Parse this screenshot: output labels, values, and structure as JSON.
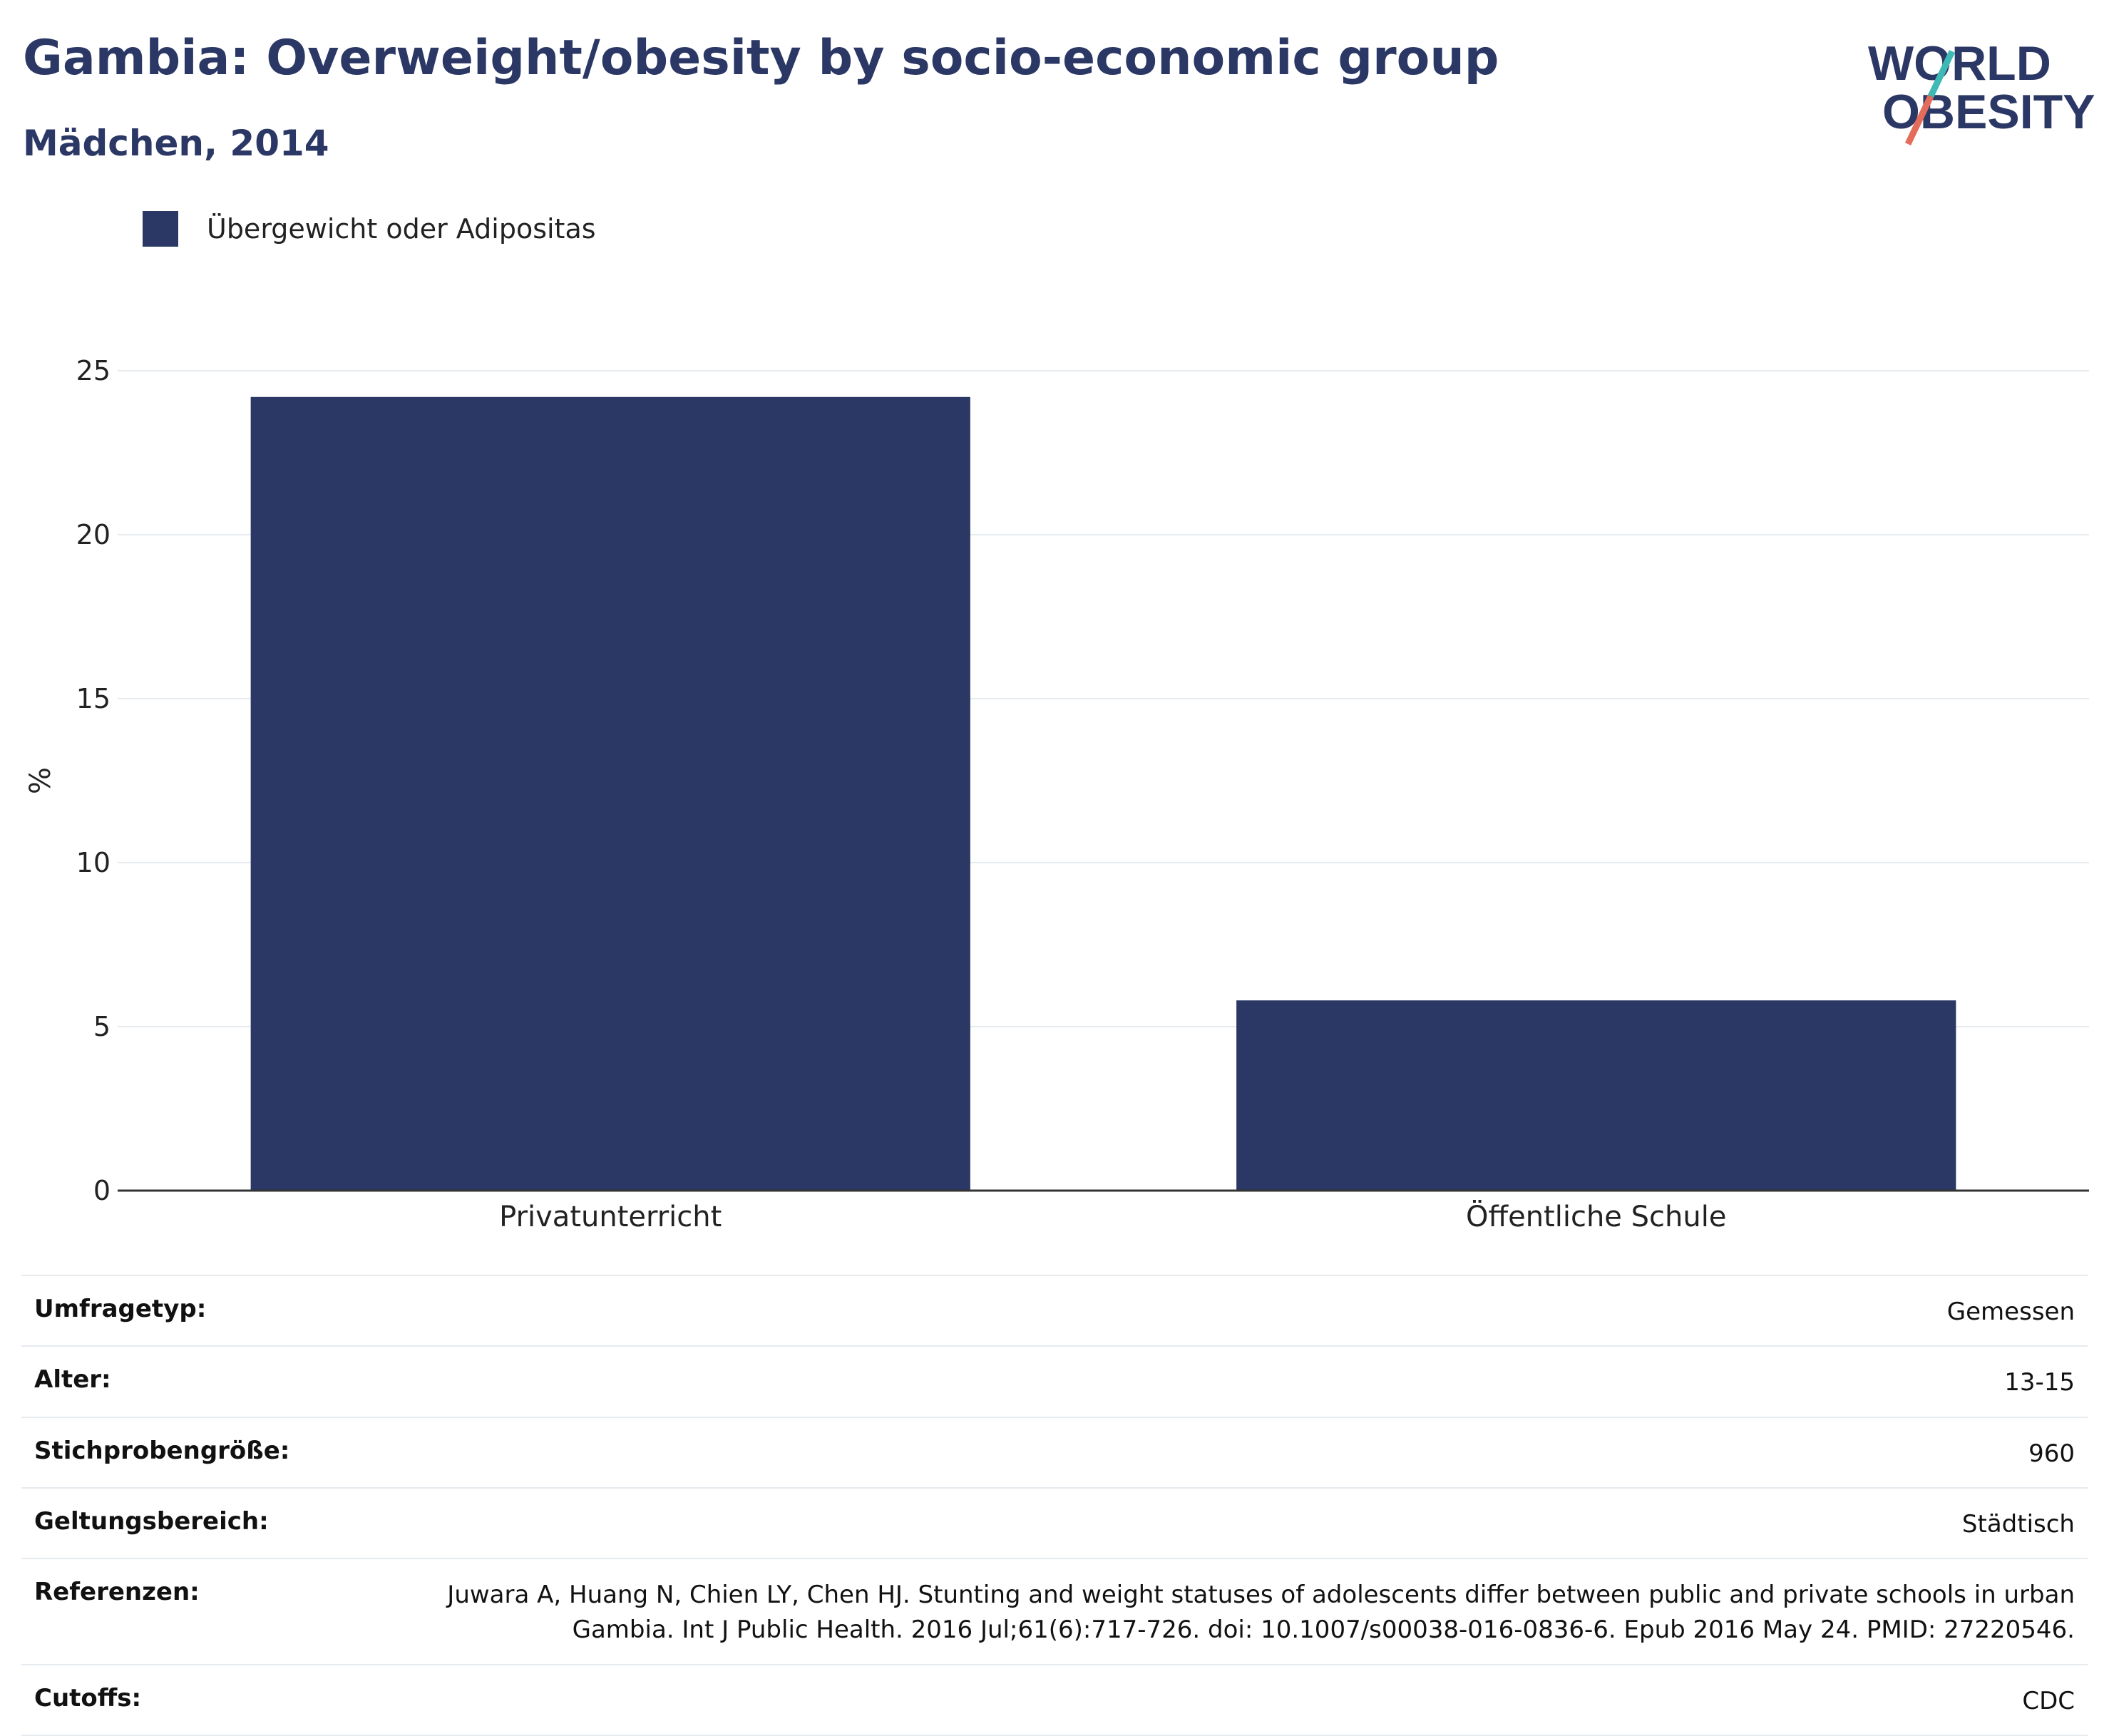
{
  "header": {
    "title": "Gambia: Overweight/obesity by socio-economic group",
    "subtitle": "Mädchen, 2014"
  },
  "logo": {
    "line1": "WORLD",
    "line2": "OBESITY"
  },
  "legend": {
    "label": "Übergewicht oder Adipositas",
    "color": "#2b3764"
  },
  "chart_data": {
    "type": "bar",
    "title": "Gambia: Overweight/obesity by socio-economic group",
    "subtitle": "Mädchen, 2014",
    "categories": [
      "Privatunterricht",
      "Öffentliche Schule"
    ],
    "series": [
      {
        "name": "Übergewicht oder Adipositas",
        "values": [
          24.2,
          5.8
        ],
        "color": "#2b3764"
      }
    ],
    "ylabel": "%",
    "ylim": [
      0,
      25
    ],
    "yticks": [
      0,
      5,
      10,
      15,
      20,
      25
    ],
    "grid": true,
    "legend_position": "top-left"
  },
  "meta": [
    {
      "label": "Umfragetyp:",
      "value": "Gemessen"
    },
    {
      "label": "Alter:",
      "value": "13-15"
    },
    {
      "label": "Stichprobengröße:",
      "value": "960"
    },
    {
      "label": "Geltungsbereich:",
      "value": "Städtisch"
    },
    {
      "label": "Referenzen:",
      "value": "Juwara A, Huang N, Chien LY, Chen HJ. Stunting and weight statuses of adolescents differ between public and private schools in urban Gambia. Int J Public Health. 2016 Jul;61(6):717-726. doi: 10.1007/s00038-016-0836-6. Epub 2016 May 24. PMID: 27220546."
    },
    {
      "label": "Cutoffs:",
      "value": "CDC"
    }
  ]
}
